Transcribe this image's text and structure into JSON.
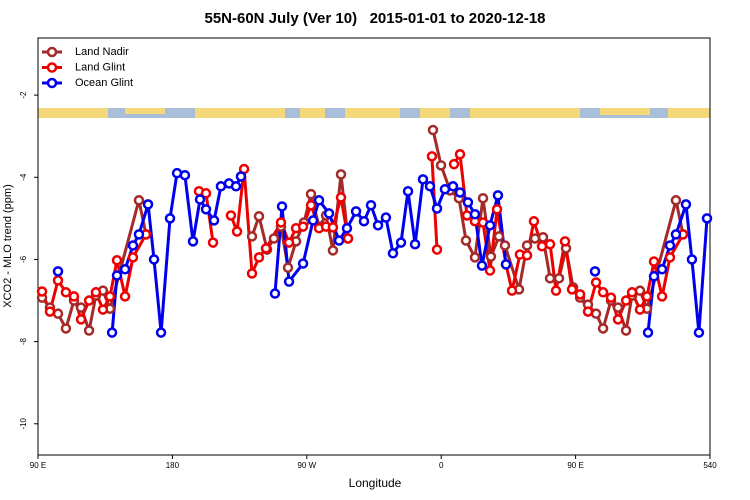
{
  "chart_data": {
    "type": "line",
    "title": "55N-60N July (Ver 10)   2015-01-01 to 2020-12-18",
    "x_label": "Longitude",
    "y_label": "XCO2 - MLO trend (ppm)",
    "xlim": [
      90,
      540
    ],
    "ylim": [
      -10.76,
      -0.61
    ],
    "xticks": [
      {
        "value": 90,
        "label": "90 E"
      },
      180,
      {
        "value": 270,
        "label": "90 W"
      },
      {
        "value": 360,
        "label": "0"
      },
      {
        "value": 450,
        "label": "90 E"
      },
      540
    ],
    "yticks": [
      -10,
      -8,
      -6,
      -4,
      -2
    ],
    "legend": "top-left",
    "series": [
      {
        "name": "Land Nadir",
        "color": "#a52a2a",
        "x": [
          92.7,
          98.0,
          103.4,
          108.7,
          114.1,
          118.8,
          124.2,
          128.8,
          133.5,
          138.2,
          157.6,
          162.3,
          null,
          233.3,
          238.0,
          243.4,
          248.0,
          252.7,
          257.4,
          262.8,
          268.1,
          272.8,
          278.2,
          282.9,
          287.5,
          292.9,
          297.6,
          null,
          354.5,
          359.9,
          365.9,
          371.9,
          376.6,
          382.6,
          388.0,
          393.3,
          398.7,
          402.7,
          412.1,
          417.5,
          422.8,
          428.2,
          432.9,
          438.9,
          443.6,
          448.3,
          453.0,
          458.3,
          463.7,
          468.4,
          473.7,
          478.4,
          483.8,
          487.8,
          493.1,
          497.8,
          517.2,
          521.9
        ],
        "values": [
          -6.93,
          -7.17,
          -7.32,
          -7.68,
          -7.0,
          -7.17,
          -7.73,
          -6.88,
          -6.76,
          -7.2,
          -4.56,
          -5.39,
          null,
          -5.44,
          -4.95,
          -5.76,
          -5.49,
          -5.2,
          -6.2,
          -5.56,
          -5.1,
          -4.41,
          -5.2,
          -4.93,
          -5.78,
          -3.93,
          -5.49,
          null,
          -2.85,
          -3.71,
          -4.32,
          -4.51,
          -5.54,
          -5.95,
          -4.51,
          -5.93,
          -5.44,
          -5.66,
          -6.73,
          -5.66,
          -5.49,
          -5.46,
          -6.46,
          -6.46,
          -5.73,
          -6.68,
          -6.93,
          -7.1,
          -7.32,
          -7.68,
          -7.0,
          -7.17,
          -7.73,
          -6.88,
          -6.76,
          -7.2,
          -4.56,
          -5.39
        ]
      },
      {
        "name": "Land Glint",
        "color": "#ee0000",
        "x": [
          92.7,
          98.0,
          103.4,
          108.7,
          114.1,
          118.8,
          124.2,
          128.8,
          133.5,
          138.2,
          142.9,
          148.3,
          153.6,
          162.3,
          null,
          197.8,
          202.5,
          207.2,
          null,
          219.2,
          223.3,
          228.0,
          233.3,
          238.0,
          242.7,
          252.7,
          258.1,
          262.8,
          267.5,
          272.8,
          278.2,
          282.9,
          287.5,
          292.9,
          297.6,
          null,
          353.8,
          357.2,
          null,
          368.6,
          372.6,
          377.3,
          382.6,
          388.0,
          392.7,
          397.4,
          403.4,
          407.4,
          412.7,
          417.5,
          422.1,
          427.5,
          432.9,
          436.9,
          442.9,
          447.6,
          453.0,
          458.3,
          463.7,
          468.4,
          473.7,
          478.4,
          483.8,
          487.8,
          493.1,
          497.8,
          502.5,
          507.9,
          513.2,
          521.9
        ],
        "values": [
          -6.78,
          -7.27,
          -6.51,
          -6.8,
          -6.9,
          -7.46,
          -7.0,
          -6.8,
          -7.22,
          -6.9,
          -6.02,
          -6.9,
          -5.95,
          -5.39,
          null,
          -4.34,
          -4.39,
          -5.59,
          null,
          -4.93,
          -5.32,
          -3.8,
          -6.34,
          -5.95,
          -5.73,
          -5.1,
          -5.59,
          -5.24,
          -5.2,
          -4.68,
          -5.24,
          -5.2,
          -5.22,
          -4.49,
          -5.49,
          null,
          -3.49,
          -5.76,
          null,
          -3.68,
          -3.44,
          -4.93,
          -5.07,
          -5.1,
          -6.27,
          -4.78,
          -6.12,
          -6.76,
          -5.88,
          -5.9,
          -5.07,
          -5.68,
          -5.63,
          -6.76,
          -5.56,
          -6.73,
          -6.85,
          -7.27,
          -6.56,
          -6.8,
          -6.93,
          -7.46,
          -7.0,
          -6.8,
          -7.22,
          -6.9,
          -6.05,
          -6.9,
          -5.95,
          -5.39
        ]
      },
      {
        "name": "Ocean Glint",
        "color": "#0000ee",
        "x": [
          103.4,
          null,
          139.6,
          142.9,
          148.3,
          153.6,
          157.6,
          163.7,
          167.7,
          172.4,
          178.4,
          183.1,
          188.4,
          193.8,
          198.5,
          202.5,
          207.9,
          212.5,
          217.9,
          222.6,
          225.9,
          null,
          248.7,
          253.4,
          258.1,
          267.5,
          274.2,
          278.2,
          284.9,
          291.6,
          296.9,
          303.0,
          308.3,
          313.0,
          317.7,
          323.0,
          327.7,
          333.1,
          337.8,
          342.5,
          347.8,
          352.5,
          357.2,
          362.5,
          367.9,
          372.6,
          377.9,
          382.6,
          387.3,
          392.7,
          398.0,
          403.4,
          null,
          463.0,
          null,
          498.5,
          502.5,
          507.9,
          513.2,
          517.2,
          523.9,
          527.9,
          532.6,
          538.0
        ],
        "values": [
          -6.29,
          null,
          -7.78,
          -6.39,
          -6.24,
          -5.66,
          -5.39,
          -4.66,
          -6.0,
          -7.78,
          -5.0,
          -3.9,
          -3.95,
          -5.56,
          -4.54,
          -4.78,
          -5.05,
          -4.22,
          -4.15,
          -4.22,
          -3.98,
          null,
          -6.83,
          -4.71,
          -6.54,
          -6.1,
          -5.05,
          -4.56,
          -4.88,
          -5.54,
          -5.24,
          -4.83,
          -5.07,
          -4.68,
          -5.17,
          -4.98,
          -5.85,
          -5.59,
          -4.34,
          -5.63,
          -4.05,
          -4.22,
          -4.76,
          -4.29,
          -4.22,
          -4.37,
          -4.61,
          -4.9,
          -6.15,
          -5.17,
          -4.44,
          -6.12,
          null,
          -6.29,
          null,
          -7.78,
          -6.41,
          -6.24,
          -5.66,
          -5.39,
          -4.66,
          -6.0,
          -7.78,
          -5.0
        ]
      }
    ]
  }
}
